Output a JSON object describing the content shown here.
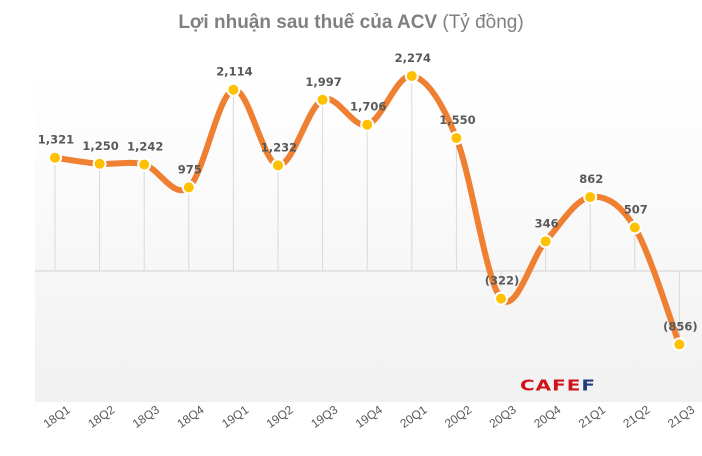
{
  "title": {
    "bold": "Lợi nhuận sau thuế của ACV",
    "unit": " (Tỷ đồng)"
  },
  "logo": {
    "text": "CAFEF",
    "red": "#d0121b",
    "blue": "#1f3f7a"
  },
  "colors": {
    "line": "#ef7f31",
    "marker": "#ffc000",
    "grid": "#d9d9d9",
    "label": "#595959"
  },
  "chart_data": {
    "type": "line",
    "title": "Lợi nhuận sau thuế của ACV (Tỷ đồng)",
    "xlabel": "",
    "ylabel": "Tỷ đồng",
    "categories": [
      "18Q1",
      "18Q2",
      "18Q3",
      "18Q4",
      "19Q1",
      "19Q2",
      "19Q3",
      "19Q4",
      "20Q1",
      "20Q2",
      "20Q3",
      "20Q4",
      "21Q1",
      "21Q2",
      "21Q3"
    ],
    "series": [
      {
        "name": "Lợi nhuận sau thuế",
        "values": [
          1321,
          1250,
          1242,
          975,
          2114,
          1232,
          1997,
          1706,
          2274,
          1550,
          -322,
          346,
          862,
          507,
          -856
        ],
        "labels": [
          "1,321",
          "1,250",
          "1,242",
          "975",
          "2,114",
          "1,232",
          "1,997",
          "1,706",
          "2,274",
          "1,550",
          "(322)",
          "346",
          "862",
          "507",
          "(856)"
        ]
      }
    ],
    "smooth": true,
    "ylim": [
      -1200,
      2600
    ],
    "grid": "vertical drop lines",
    "legend": "none",
    "rotated_x_ticks": true
  }
}
